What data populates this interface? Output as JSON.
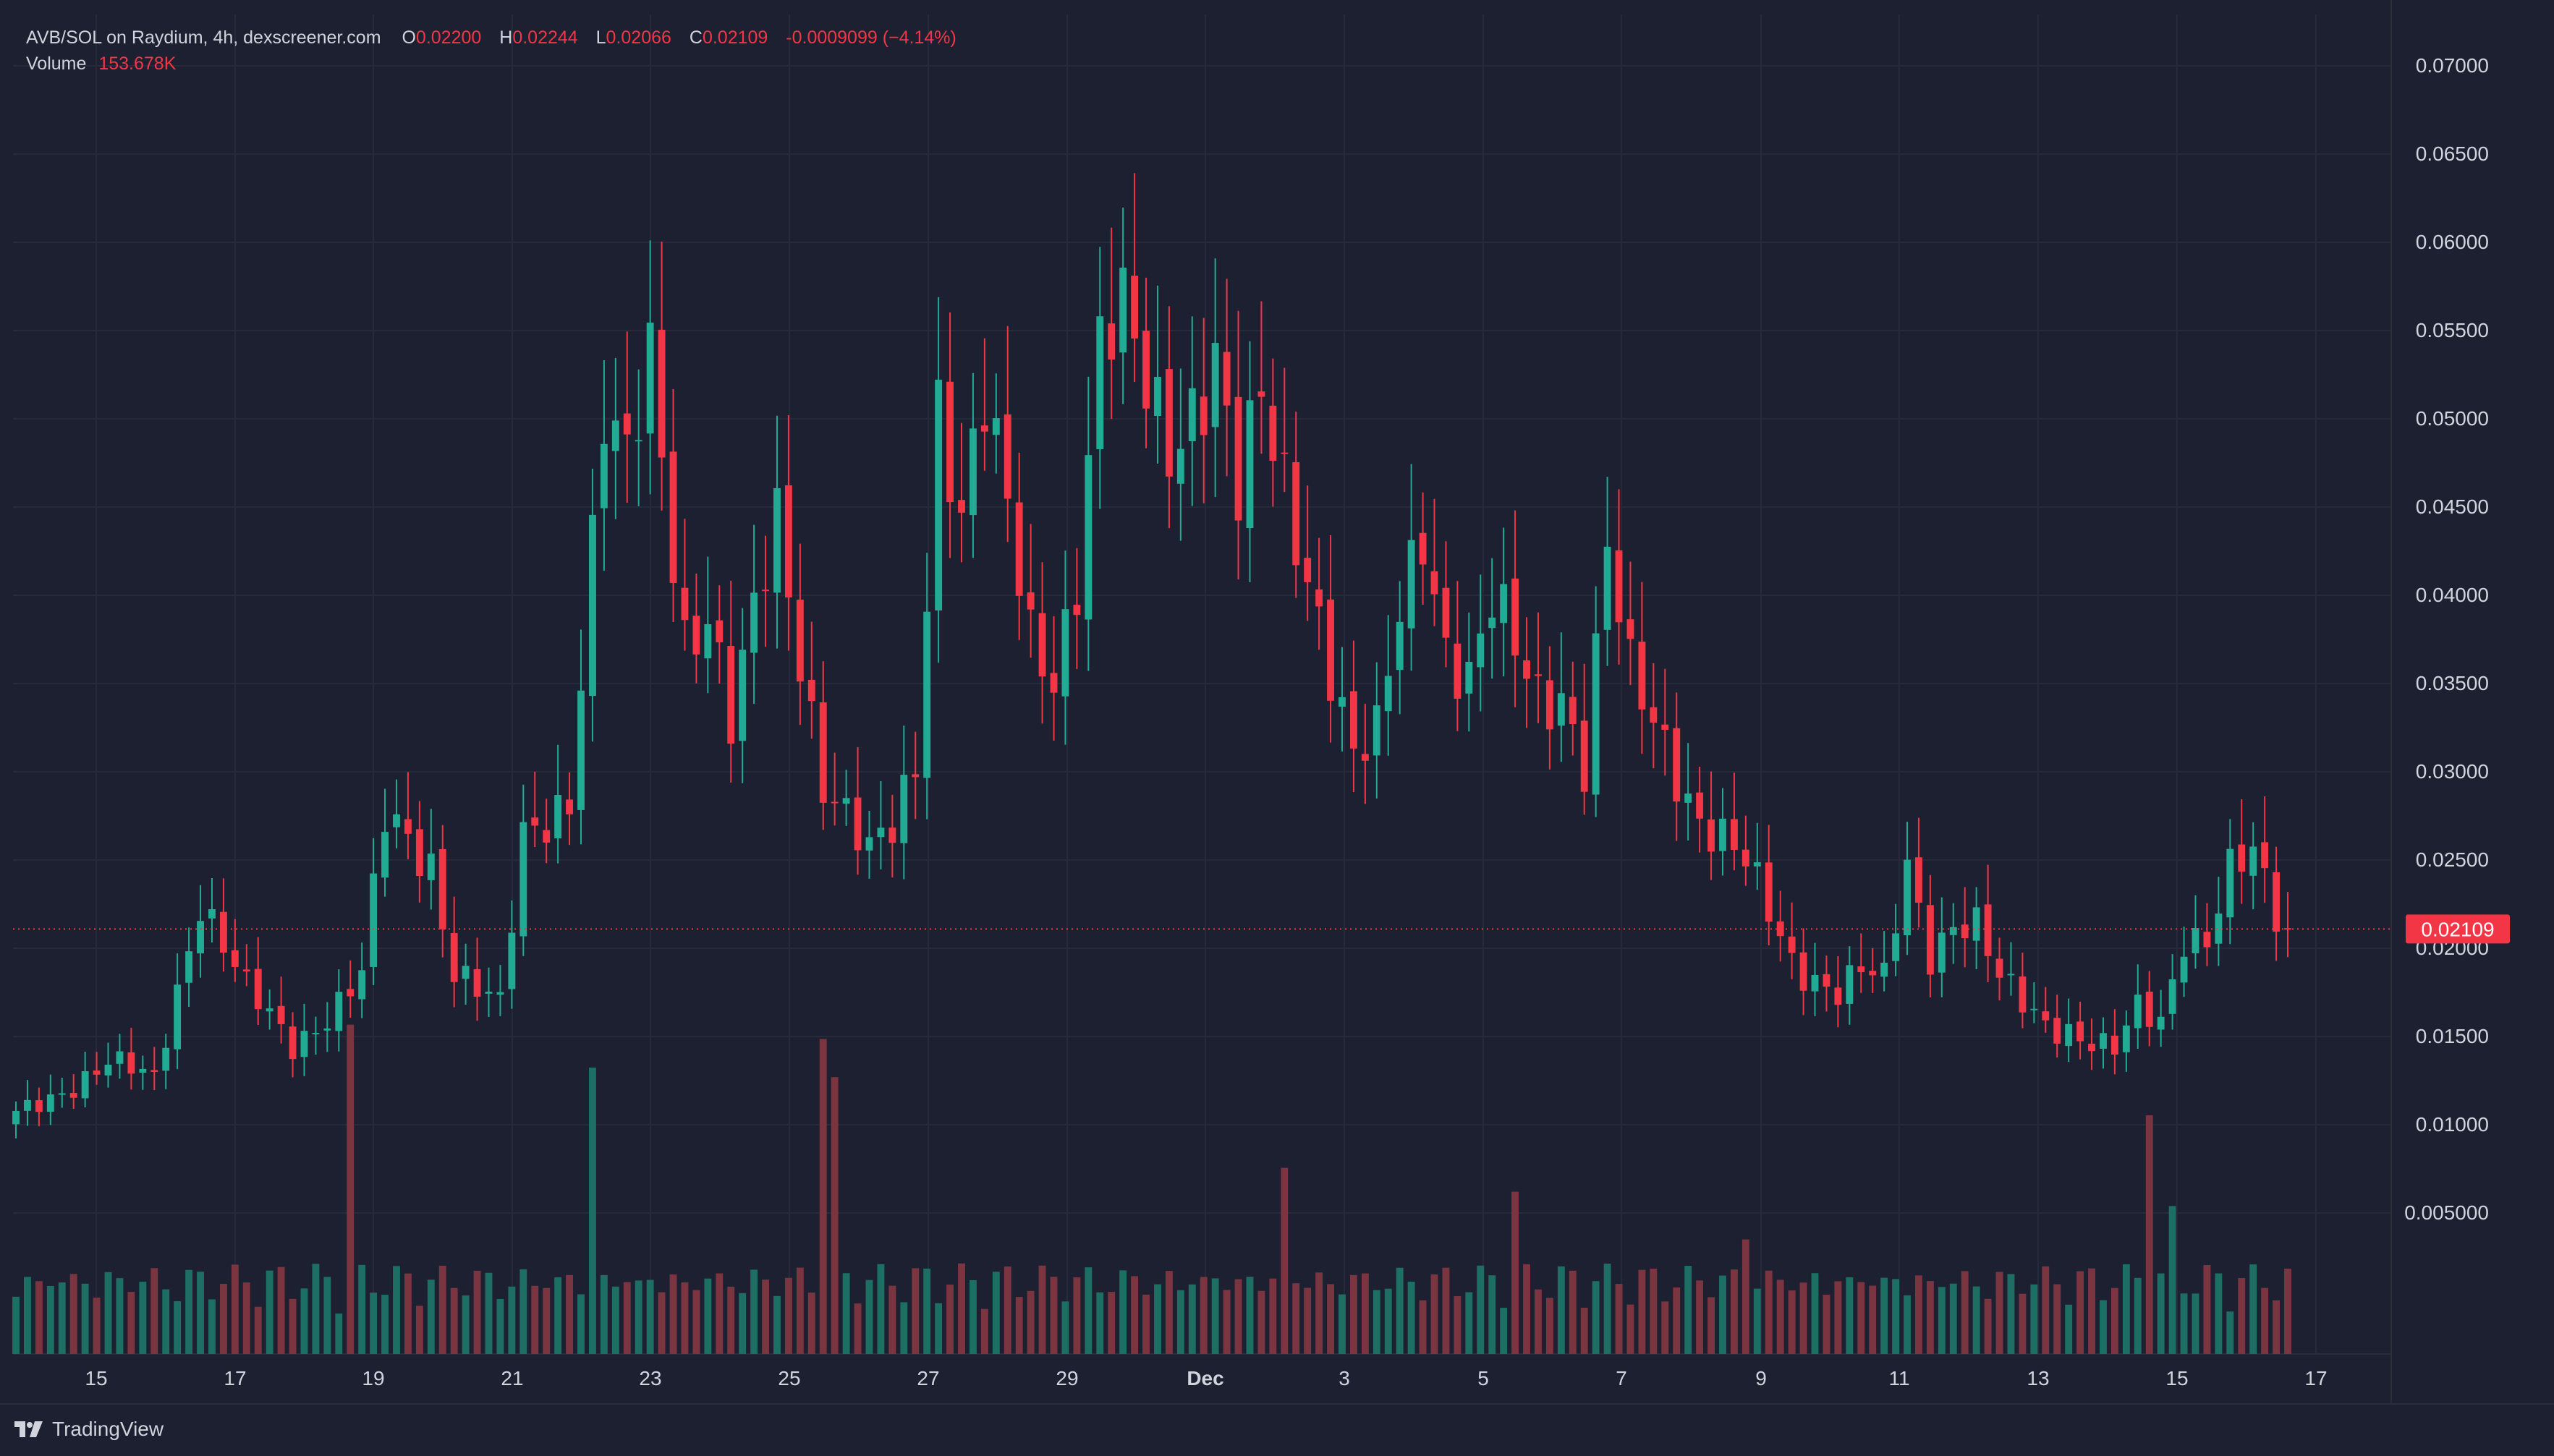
{
  "header": {
    "symbol_line": "AVB/SOL on Raydium, 4h, dexscreener.com",
    "o_label": "O",
    "o_value": "0.02200",
    "h_label": "H",
    "h_value": "0.02244",
    "l_label": "L",
    "l_value": "0.02066",
    "c_label": "C",
    "c_value": "0.02109",
    "change": "-0.0009099 (−4.14%)",
    "volume_label": "Volume",
    "volume_value": "153.678K"
  },
  "price_tag": "0.02109",
  "footer": {
    "brand": "TradingView",
    "logo_icon": "tradingview-logo-icon"
  },
  "colors": {
    "background": "#1c2030",
    "up": "#22ab94",
    "down": "#f23645",
    "up_volume": "#1d6e63",
    "down_volume": "#7b3540",
    "grid": "#262b3b",
    "price_line": "#f23645"
  },
  "chart_data": {
    "type": "candlestick",
    "title": "AVB/SOL on Raydium, 4h, dexscreener.com",
    "interval": "4h",
    "ylim": [
      0.0,
      0.072
    ],
    "y_ticks": [
      "0.07000",
      "0.06500",
      "0.06000",
      "0.05500",
      "0.05000",
      "0.04500",
      "0.04000",
      "0.03500",
      "0.03000",
      "0.02500",
      "0.02000",
      "0.01500",
      "0.01000",
      "0.005000"
    ],
    "x_ticks": [
      "15",
      "17",
      "19",
      "21",
      "23",
      "25",
      "27",
      "29",
      "Dec",
      "3",
      "5",
      "7",
      "9",
      "11",
      "13",
      "15",
      "17"
    ],
    "grid": true,
    "last_price": 0.02109,
    "candle_count": 198,
    "waypoints": [
      [
        0,
        0.0105
      ],
      [
        8,
        0.0135
      ],
      [
        12,
        0.0125
      ],
      [
        16,
        0.023
      ],
      [
        20,
        0.0175
      ],
      [
        24,
        0.0145
      ],
      [
        28,
        0.017
      ],
      [
        30,
        0.0185
      ],
      [
        32,
        0.027
      ],
      [
        36,
        0.025
      ],
      [
        38,
        0.019
      ],
      [
        42,
        0.0165
      ],
      [
        44,
        0.026
      ],
      [
        48,
        0.029
      ],
      [
        51,
        0.05
      ],
      [
        53,
        0.0465
      ],
      [
        55,
        0.053
      ],
      [
        58,
        0.038
      ],
      [
        60,
        0.0395
      ],
      [
        62,
        0.0325
      ],
      [
        66,
        0.044
      ],
      [
        70,
        0.03
      ],
      [
        74,
        0.025
      ],
      [
        76,
        0.0265
      ],
      [
        78,
        0.0305
      ],
      [
        80,
        0.0515
      ],
      [
        82,
        0.045
      ],
      [
        84,
        0.0505
      ],
      [
        88,
        0.0375
      ],
      [
        90,
        0.036
      ],
      [
        92,
        0.0415
      ],
      [
        94,
        0.054
      ],
      [
        96,
        0.055
      ],
      [
        98,
        0.0515
      ],
      [
        100,
        0.049
      ],
      [
        104,
        0.0535
      ],
      [
        106,
        0.045
      ],
      [
        108,
        0.0505
      ],
      [
        112,
        0.042
      ],
      [
        116,
        0.0305
      ],
      [
        118,
        0.0315
      ],
      [
        120,
        0.039
      ],
      [
        122,
        0.0445
      ],
      [
        124,
        0.0375
      ],
      [
        126,
        0.035
      ],
      [
        128,
        0.039
      ],
      [
        132,
        0.0345
      ],
      [
        134,
        0.035
      ],
      [
        136,
        0.0305
      ],
      [
        138,
        0.042
      ],
      [
        140,
        0.035
      ],
      [
        142,
        0.033
      ],
      [
        144,
        0.0305
      ],
      [
        146,
        0.0275
      ],
      [
        150,
        0.0245
      ],
      [
        154,
        0.0195
      ],
      [
        158,
        0.0175
      ],
      [
        160,
        0.0185
      ],
      [
        162,
        0.018
      ],
      [
        164,
        0.025
      ],
      [
        166,
        0.02
      ],
      [
        168,
        0.0215
      ],
      [
        170,
        0.021
      ],
      [
        172,
        0.018
      ],
      [
        176,
        0.016
      ],
      [
        178,
        0.0155
      ],
      [
        180,
        0.0145
      ],
      [
        182,
        0.014
      ],
      [
        184,
        0.0165
      ],
      [
        186,
        0.016
      ],
      [
        188,
        0.021
      ],
      [
        190,
        0.0205
      ],
      [
        192,
        0.024
      ],
      [
        194,
        0.025
      ],
      [
        196,
        0.022
      ],
      [
        197,
        0.02109
      ]
    ],
    "volume_peaks": [
      [
        29,
        0.0345
      ],
      [
        50,
        0.03
      ],
      [
        70,
        0.033
      ],
      [
        71,
        0.029
      ],
      [
        110,
        0.0195
      ],
      [
        130,
        0.017
      ],
      [
        185,
        0.025
      ],
      [
        187,
        0.0155
      ],
      [
        150,
        0.012
      ]
    ]
  }
}
